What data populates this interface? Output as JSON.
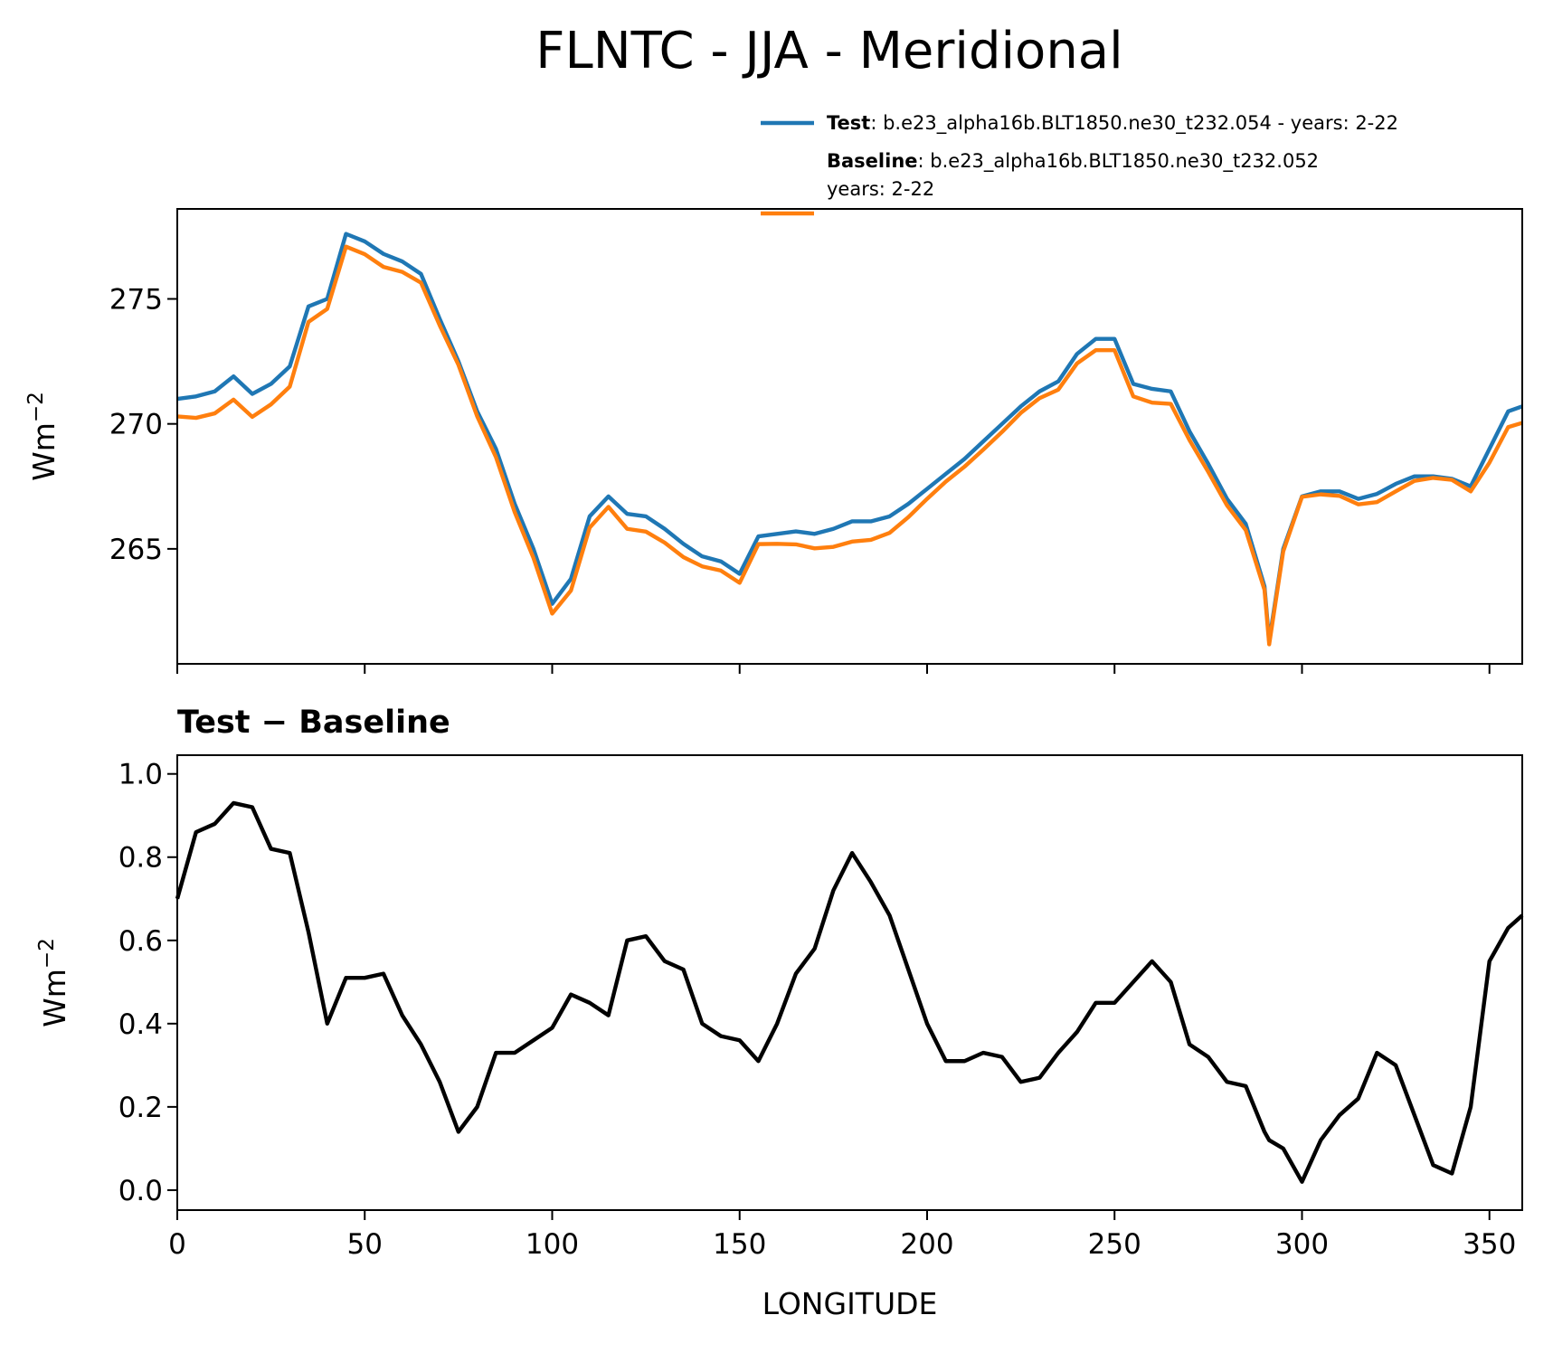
{
  "suptitle": "FLNTC - JJA - Meridional",
  "chart_data": [
    {
      "type": "line",
      "ylabel": "Wm",
      "ylabel_exponent": "−2",
      "x": [
        0,
        5,
        10,
        15,
        20,
        25,
        30,
        35,
        40,
        45,
        50,
        55,
        60,
        65,
        70,
        75,
        80,
        85,
        90,
        95,
        100,
        105,
        110,
        115,
        120,
        125,
        130,
        135,
        140,
        145,
        150,
        155,
        160,
        165,
        170,
        175,
        180,
        185,
        190,
        195,
        200,
        205,
        210,
        215,
        220,
        225,
        230,
        235,
        240,
        245,
        250,
        255,
        260,
        265,
        270,
        275,
        280,
        285,
        290,
        291.25,
        295,
        300,
        305,
        310,
        315,
        320,
        325,
        330,
        335,
        340,
        345,
        350,
        355,
        358.75
      ],
      "series": [
        {
          "name": "Test",
          "description": [
            ": b.e23_alpha16b.BLT1850.ne30_t232.054 - years: 2-22"
          ],
          "color": "#1f77b4",
          "values": [
            271.0,
            271.1,
            271.3,
            271.9,
            271.2,
            271.6,
            272.3,
            274.7,
            275.0,
            277.6,
            277.3,
            276.8,
            276.5,
            276.0,
            274.2,
            272.5,
            270.5,
            269.0,
            266.8,
            265.0,
            262.8,
            263.8,
            266.3,
            267.1,
            266.4,
            266.3,
            265.8,
            265.2,
            264.7,
            264.5,
            264.0,
            265.5,
            265.6,
            265.7,
            265.6,
            265.8,
            266.1,
            266.1,
            266.3,
            266.8,
            267.4,
            268.0,
            268.6,
            269.3,
            270.0,
            270.7,
            271.3,
            271.7,
            272.8,
            273.4,
            273.4,
            271.6,
            271.4,
            271.3,
            269.7,
            268.4,
            267.0,
            266.0,
            263.5,
            261.3,
            265.0,
            267.1,
            267.3,
            267.3,
            267.0,
            267.2,
            267.6,
            267.9,
            267.9,
            267.8,
            267.5,
            269.0,
            270.5,
            270.7
          ]
        },
        {
          "name": "Baseline",
          "description": [
            ": b.e23_alpha16b.BLT1850.ne30_t232.052",
            "years: 2-22"
          ],
          "color": "#ff7f0e",
          "values": [
            270.3,
            270.24,
            270.42,
            270.97,
            270.28,
            270.78,
            271.49,
            274.08,
            274.6,
            277.09,
            276.79,
            276.28,
            276.08,
            275.65,
            273.94,
            272.36,
            270.3,
            268.67,
            266.47,
            264.64,
            262.41,
            263.33,
            265.85,
            266.68,
            265.8,
            265.69,
            265.25,
            264.67,
            264.3,
            264.13,
            263.64,
            265.19,
            265.2,
            265.18,
            265.02,
            265.08,
            265.29,
            265.36,
            265.64,
            266.27,
            267.0,
            267.69,
            268.29,
            268.97,
            269.68,
            270.44,
            271.03,
            271.37,
            272.42,
            272.95,
            272.95,
            271.1,
            270.85,
            270.8,
            269.35,
            268.08,
            266.74,
            265.75,
            263.36,
            261.18,
            264.9,
            267.08,
            267.18,
            267.12,
            266.78,
            266.87,
            267.3,
            267.72,
            267.84,
            267.76,
            267.3,
            268.45,
            269.87,
            270.04
          ]
        }
      ],
      "xlim": [
        0,
        358.75
      ],
      "xticks": [
        0,
        50,
        100,
        150,
        200,
        250,
        300,
        350
      ],
      "xticklabels": false,
      "ylim": [
        260.4,
        278.6
      ],
      "yticks": [
        265,
        270,
        275
      ],
      "legend": "upper right"
    },
    {
      "type": "line",
      "title": "Test − Baseline",
      "ylabel": "Wm",
      "ylabel_exponent": "−2",
      "xlabel": "LONGITUDE",
      "x": [
        0,
        5,
        10,
        15,
        20,
        25,
        30,
        35,
        40,
        45,
        50,
        55,
        60,
        65,
        70,
        75,
        80,
        85,
        90,
        95,
        100,
        105,
        110,
        115,
        120,
        125,
        130,
        135,
        140,
        145,
        150,
        155,
        160,
        165,
        170,
        175,
        180,
        185,
        190,
        195,
        200,
        205,
        210,
        215,
        220,
        225,
        230,
        235,
        240,
        245,
        250,
        255,
        260,
        265,
        270,
        275,
        280,
        285,
        290,
        291.25,
        295,
        300,
        305,
        310,
        315,
        320,
        325,
        330,
        335,
        340,
        345,
        350,
        355,
        358.75
      ],
      "series": [
        {
          "color": "#000000",
          "values": [
            0.7,
            0.86,
            0.88,
            0.93,
            0.92,
            0.82,
            0.81,
            0.62,
            0.4,
            0.51,
            0.51,
            0.52,
            0.42,
            0.35,
            0.26,
            0.14,
            0.2,
            0.33,
            0.33,
            0.36,
            0.39,
            0.47,
            0.45,
            0.42,
            0.6,
            0.61,
            0.55,
            0.53,
            0.4,
            0.37,
            0.36,
            0.31,
            0.4,
            0.52,
            0.58,
            0.72,
            0.81,
            0.74,
            0.66,
            0.53,
            0.4,
            0.31,
            0.31,
            0.33,
            0.32,
            0.26,
            0.27,
            0.33,
            0.38,
            0.45,
            0.45,
            0.5,
            0.55,
            0.5,
            0.35,
            0.32,
            0.26,
            0.25,
            0.14,
            0.12,
            0.1,
            0.02,
            0.12,
            0.18,
            0.22,
            0.33,
            0.3,
            0.18,
            0.06,
            0.04,
            0.2,
            0.55,
            0.63,
            0.66
          ]
        }
      ],
      "xlim": [
        0,
        358.75
      ],
      "xticks": [
        0,
        50,
        100,
        150,
        200,
        250,
        300,
        350
      ],
      "xticklabels": true,
      "ylim": [
        -0.048,
        1.045
      ],
      "yticks": [
        {
          "value": 0,
          "label": "0.0"
        },
        0.2,
        0.4,
        0.6,
        0.8,
        {
          "value": 1,
          "label": "1.0"
        }
      ]
    }
  ]
}
